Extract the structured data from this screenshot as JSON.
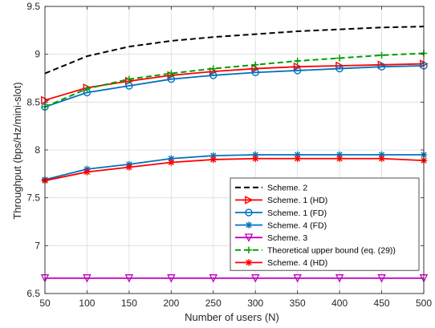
{
  "chart_data": {
    "type": "line",
    "xlabel": "Number of users (N)",
    "ylabel": "Throughput (bps/Hz/mini-slot)",
    "xlim": [
      50,
      500
    ],
    "ylim": [
      6.5,
      9.5
    ],
    "x_ticks": [
      50,
      100,
      150,
      200,
      250,
      300,
      350,
      400,
      450,
      500
    ],
    "y_ticks": [
      6.5,
      7,
      7.5,
      8,
      8.5,
      9,
      9.5
    ],
    "y_tick_labels": [
      "6.5",
      "7",
      "7.5",
      "8",
      "8.5",
      "9",
      "9.5"
    ],
    "grid": true,
    "legend_position": "lower-right",
    "x": [
      50,
      100,
      150,
      200,
      250,
      300,
      350,
      400,
      450,
      500
    ],
    "series": [
      {
        "name": "Scheme. 2",
        "color": "#000000",
        "dash": "dashed",
        "marker": "none",
        "values": [
          8.8,
          8.98,
          9.08,
          9.14,
          9.18,
          9.21,
          9.24,
          9.26,
          9.28,
          9.29
        ]
      },
      {
        "name": "Scheme. 1 (HD)",
        "color": "#ff0000",
        "dash": "solid",
        "marker": "triangle-right",
        "values": [
          8.52,
          8.65,
          8.72,
          8.78,
          8.82,
          8.85,
          8.87,
          8.88,
          8.89,
          8.9
        ]
      },
      {
        "name": "Scheme. 1 (FD)",
        "color": "#0072bd",
        "dash": "solid",
        "marker": "circle",
        "values": [
          8.45,
          8.6,
          8.67,
          8.74,
          8.78,
          8.81,
          8.83,
          8.85,
          8.87,
          8.88
        ]
      },
      {
        "name": "Scheme. 4 (FD)",
        "color": "#0072bd",
        "dash": "solid",
        "marker": "asterisk",
        "values": [
          7.69,
          7.8,
          7.85,
          7.91,
          7.94,
          7.95,
          7.95,
          7.95,
          7.95,
          7.95
        ]
      },
      {
        "name": "Scheme. 3",
        "color": "#c000c0",
        "dash": "solid",
        "marker": "triangle-down",
        "values": [
          6.66,
          6.66,
          6.66,
          6.66,
          6.66,
          6.66,
          6.66,
          6.66,
          6.66,
          6.66
        ]
      },
      {
        "name": "Theoretical upper bound (eq. (29))",
        "color": "#00a000",
        "dash": "dashed",
        "marker": "plus",
        "values": [
          8.45,
          8.64,
          8.74,
          8.8,
          8.85,
          8.89,
          8.93,
          8.96,
          8.99,
          9.01
        ]
      },
      {
        "name": "Scheme. 4 (HD)",
        "color": "#ff0000",
        "dash": "solid",
        "marker": "asterisk",
        "values": [
          7.68,
          7.77,
          7.82,
          7.87,
          7.9,
          7.91,
          7.91,
          7.91,
          7.91,
          7.89
        ]
      }
    ]
  }
}
